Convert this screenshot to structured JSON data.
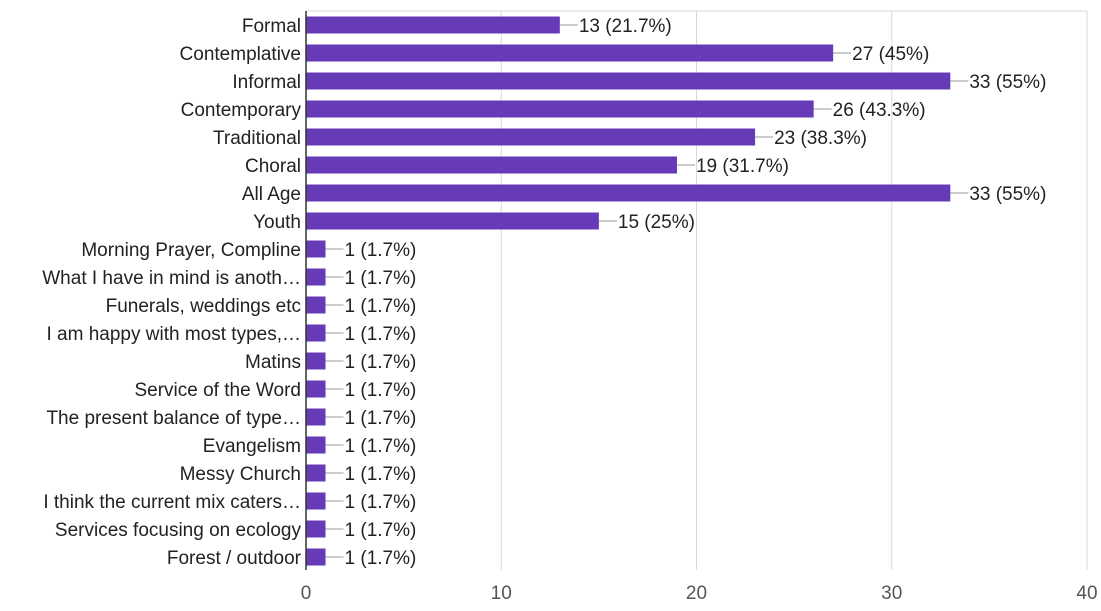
{
  "chart_data": {
    "type": "bar",
    "orientation": "horizontal",
    "bar_color": "#673ab7",
    "grid": true,
    "xlim": [
      0,
      40
    ],
    "x_ticks": [
      0,
      10,
      20,
      30,
      40
    ],
    "xlabel": "",
    "ylabel": "",
    "categories": [
      "Formal",
      "Contemplative",
      "Informal",
      "Contemporary",
      "Traditional",
      "Choral",
      "All Age",
      "Youth",
      "Morning Prayer, Compline",
      "What I have in mind is anoth…",
      "Funerals, weddings etc",
      "I am happy with most types,…",
      "Matins",
      "Service of the Word",
      "The present balance of type…",
      "Evangelism",
      "Messy Church",
      "I think the current mix caters…",
      "Services focusing on ecology",
      "Forest / outdoor"
    ],
    "values": [
      13,
      27,
      33,
      26,
      23,
      19,
      33,
      15,
      1,
      1,
      1,
      1,
      1,
      1,
      1,
      1,
      1,
      1,
      1,
      1
    ],
    "data_labels": [
      "13 (21.7%)",
      "27 (45%)",
      "33 (55%)",
      "26 (43.3%)",
      "23 (38.3%)",
      "19 (31.7%)",
      "33 (55%)",
      "15 (25%)",
      "1 (1.7%)",
      "1 (1.7%)",
      "1 (1.7%)",
      "1 (1.7%)",
      "1 (1.7%)",
      "1 (1.7%)",
      "1 (1.7%)",
      "1 (1.7%)",
      "1 (1.7%)",
      "1 (1.7%)",
      "1 (1.7%)",
      "1 (1.7%)"
    ]
  }
}
